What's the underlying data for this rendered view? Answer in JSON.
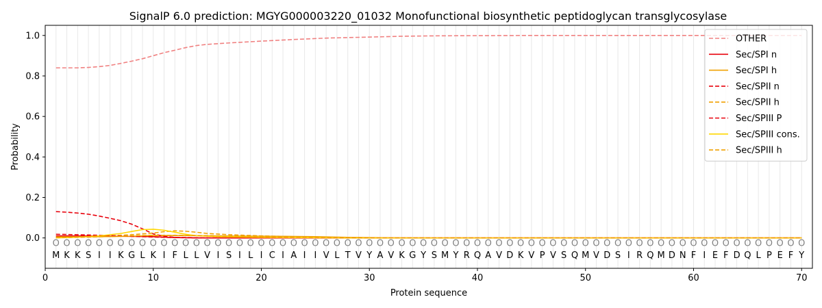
{
  "chart_data": {
    "type": "line",
    "title": "SignalP 6.0 prediction: MGYG000003220_01032 Monofunctional biosynthetic peptidoglycan transglycosylase",
    "xlabel": "Protein sequence",
    "ylabel": "Probability",
    "xlim": [
      0,
      71
    ],
    "ylim": [
      -0.15,
      1.05
    ],
    "xticks": [
      0,
      10,
      20,
      30,
      40,
      50,
      60,
      70
    ],
    "yticks": [
      0.0,
      0.2,
      0.4,
      0.6,
      0.8,
      1.0
    ],
    "xtick_labels": [
      "0",
      "10",
      "20",
      "30",
      "40",
      "50",
      "60",
      "70"
    ],
    "ytick_labels": [
      "0.0",
      "0.2",
      "0.4",
      "0.6",
      "0.8",
      "1.0"
    ],
    "legend_position": "top-right",
    "grid": "vertical lines at each residue",
    "sequence": "MKKSIIKGLKIFLLVISILICIAIIVLTVYAVKGYSMYRQAVDKVPVSQMVDSIRQMDNFIEFDQLPEFY",
    "class_label": "O",
    "series": [
      {
        "name": "OTHER",
        "color": "#f08080",
        "dash": true,
        "points": [
          [
            1,
            0.84
          ],
          [
            3,
            0.84
          ],
          [
            4,
            0.842
          ],
          [
            5,
            0.846
          ],
          [
            6,
            0.852
          ],
          [
            7,
            0.862
          ],
          [
            8,
            0.873
          ],
          [
            9,
            0.885
          ],
          [
            10,
            0.9
          ],
          [
            11,
            0.915
          ],
          [
            12,
            0.927
          ],
          [
            13,
            0.94
          ],
          [
            14,
            0.95
          ],
          [
            15,
            0.956
          ],
          [
            17,
            0.963
          ],
          [
            20,
            0.972
          ],
          [
            23,
            0.98
          ],
          [
            26,
            0.987
          ],
          [
            30,
            0.992
          ],
          [
            33,
            0.996
          ],
          [
            36,
            0.998
          ],
          [
            40,
            0.999
          ],
          [
            45,
            1.0
          ],
          [
            70,
            1.0
          ]
        ]
      },
      {
        "name": "Sec/SPI n",
        "color": "#e8000b",
        "dash": false,
        "points": [
          [
            1,
            0.01
          ],
          [
            3,
            0.01
          ],
          [
            5,
            0.009
          ],
          [
            7,
            0.008
          ],
          [
            9,
            0.007
          ],
          [
            10,
            0.006
          ],
          [
            11,
            0.004
          ],
          [
            12,
            0.002
          ],
          [
            13,
            0.001
          ],
          [
            14,
            0.0
          ],
          [
            70,
            0.0
          ]
        ]
      },
      {
        "name": "Sec/SPI h",
        "color": "#f0a000",
        "dash": false,
        "points": [
          [
            1,
            0.005
          ],
          [
            5,
            0.006
          ],
          [
            8,
            0.008
          ],
          [
            10,
            0.012
          ],
          [
            12,
            0.012
          ],
          [
            14,
            0.011
          ],
          [
            18,
            0.009
          ],
          [
            22,
            0.008
          ],
          [
            25,
            0.006
          ],
          [
            28,
            0.003
          ],
          [
            31,
            0.001
          ],
          [
            34,
            0.0
          ],
          [
            70,
            0.0
          ]
        ]
      },
      {
        "name": "Sec/SPII n",
        "color": "#e8000b",
        "dash": true,
        "points": [
          [
            1,
            0.13
          ],
          [
            2,
            0.127
          ],
          [
            3,
            0.123
          ],
          [
            4,
            0.117
          ],
          [
            5,
            0.108
          ],
          [
            6,
            0.097
          ],
          [
            7,
            0.085
          ],
          [
            8,
            0.068
          ],
          [
            9,
            0.045
          ],
          [
            10,
            0.02
          ],
          [
            11,
            0.008
          ],
          [
            12,
            0.003
          ],
          [
            14,
            0.001
          ],
          [
            16,
            0.0
          ],
          [
            70,
            0.0
          ]
        ]
      },
      {
        "name": "Sec/SPII h",
        "color": "#f0a000",
        "dash": true,
        "points": [
          [
            1,
            0.005
          ],
          [
            4,
            0.006
          ],
          [
            6,
            0.01
          ],
          [
            8,
            0.016
          ],
          [
            10,
            0.024
          ],
          [
            11,
            0.031
          ],
          [
            12,
            0.035
          ],
          [
            13,
            0.033
          ],
          [
            14,
            0.028
          ],
          [
            15,
            0.022
          ],
          [
            17,
            0.016
          ],
          [
            20,
            0.01
          ],
          [
            24,
            0.005
          ],
          [
            28,
            0.002
          ],
          [
            32,
            0.0
          ],
          [
            70,
            0.0
          ]
        ]
      },
      {
        "name": "Sec/SPIII P",
        "color": "#e8000b",
        "dash": true,
        "points": [
          [
            1,
            0.018
          ],
          [
            3,
            0.016
          ],
          [
            5,
            0.013
          ],
          [
            7,
            0.01
          ],
          [
            9,
            0.006
          ],
          [
            11,
            0.003
          ],
          [
            13,
            0.001
          ],
          [
            15,
            0.0
          ],
          [
            70,
            0.0
          ]
        ]
      },
      {
        "name": "Sec/SPIII cons.",
        "color": "#ffd700",
        "dash": false,
        "points": [
          [
            1,
            0.0
          ],
          [
            3,
            0.003
          ],
          [
            5,
            0.01
          ],
          [
            7,
            0.022
          ],
          [
            8,
            0.032
          ],
          [
            9,
            0.041
          ],
          [
            10,
            0.043
          ],
          [
            11,
            0.038
          ],
          [
            12,
            0.028
          ],
          [
            13,
            0.018
          ],
          [
            14,
            0.011
          ],
          [
            16,
            0.006
          ],
          [
            20,
            0.003
          ],
          [
            25,
            0.001
          ],
          [
            28,
            0.0
          ],
          [
            70,
            0.0
          ]
        ]
      },
      {
        "name": "Sec/SPIII h",
        "color": "#f0a000",
        "dash": true,
        "points": [
          [
            1,
            0.002
          ],
          [
            4,
            0.004
          ],
          [
            6,
            0.007
          ],
          [
            8,
            0.01
          ],
          [
            10,
            0.013
          ],
          [
            12,
            0.013
          ],
          [
            15,
            0.011
          ],
          [
            18,
            0.008
          ],
          [
            22,
            0.005
          ],
          [
            26,
            0.002
          ],
          [
            30,
            0.0
          ],
          [
            70,
            0.0
          ]
        ]
      }
    ]
  }
}
